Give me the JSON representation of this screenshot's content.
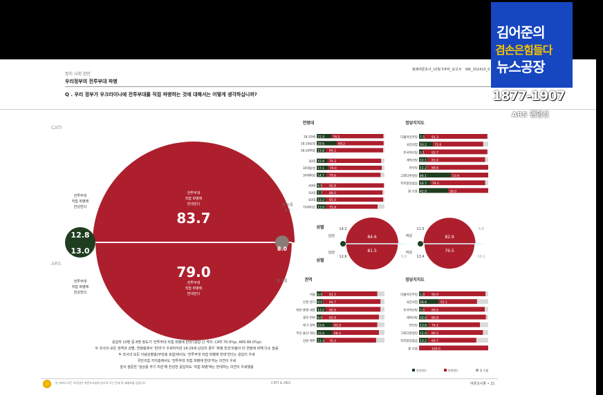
{
  "header": {
    "section": "정치 사회 현안",
    "topic": "우리정부의 전투부대 파병",
    "question": "Q . 우리 정부가 우크라이나에 전투부대를 직접 파병하는 것에 대해서는 어떻게 생각하십니까?",
    "report_ref": "정례여론조사_10월 5주차_보고서",
    "report_code": "WK_202410_0"
  },
  "logo": {
    "line1": "김어준의",
    "line2": "겸손은힘들다",
    "line3": "뉴스공장",
    "phone": "1877-1907",
    "sub": "ARS 랜덤선"
  },
  "colors": {
    "red": "#ad1f2d",
    "green": "#1f3d1f",
    "gray": "#8a7b74",
    "logo_blue": "#1646c0",
    "logo_yellow": "#f6c200"
  },
  "main": {
    "cati_label": "CATI",
    "ars_label": "ARS",
    "cati": {
      "support": 12.8,
      "oppose": 83.7,
      "dk": 3.4
    },
    "ars": {
      "support": 13.0,
      "oppose": 79.0,
      "dk": 8.0
    },
    "support_label_top": [
      "전투부대",
      "직접 파병에",
      "찬성한다"
    ],
    "support_label_bottom": [
      "전투부대",
      "직접 파병에",
      "찬성한다"
    ],
    "oppose_label_top": [
      "전투부대",
      "직접 파병에",
      "반대한다"
    ],
    "oppose_label_bottom": [
      "전투부대",
      "직접 파병에",
      "반대한다"
    ],
    "dk_label_top": [
      "잘 모름",
      "3.4"
    ],
    "dk_label_bottom": "잘 모름"
  },
  "summary": [
    "응답자 10명 중 8명 정도가 '전투부대 직접 파병에 반대'(응답 간 격차: CATI 70.9%p, ARS 66.0%p)",
    "두 조사의 모든 권역과 성별, 연령층에서 '반대'가 우세하지만 18-29세 남성의 경우 '파병 찬성'비율이 타 연령에 비해 다소 높음",
    "두 조사의 모든 이념성향층(무당층 포함)에서도 '전투부대 직접 파병에 반대'한다는 응답이 우세",
    "국민의힘 지지층에서도 '전투부대 직접 파병에 반대'하는 의견이 우세",
    "앞서 질문한 '살상용 무기 지원'에 찬성한 응답자도 '직접 파병'에는 반대하는 의견이 우세했음"
  ],
  "footer": {
    "left": "본 자료의 모든 저작권은 여론조사꽃에 있으며 무단 전재 및 재배포를 금합니다",
    "center": "CATI & ARS",
    "right": "여론조사꽃 • 21"
  },
  "chart_data": [
    {
      "type": "bar",
      "title": "연령대",
      "categories": [
        "18-29세",
        "18-29남성",
        "18-29여성",
        "30대",
        "30대남성",
        "30대여성",
        "40대",
        "50대",
        "60대",
        "70세이상"
      ],
      "series": [
        {
          "name": "찬성",
          "values": [
            21.9,
            29.6,
            13.8,
            15.9,
            17.1,
            14.7,
            6.5,
            7.7,
            13.2,
            13.9
          ]
        },
        {
          "name": "반대",
          "values": [
            76.5,
            69.2,
            84.2,
            79.3,
            79.0,
            79.6,
            92.8,
            89.5,
            85.0,
            75.9
          ]
        }
      ]
    },
    {
      "type": "bar",
      "title": "정당지지도",
      "categories": [
        "더불어민주당",
        "국민의힘",
        "조국혁신당",
        "개혁신당",
        "진보당",
        "그외다른정당",
        "지지정당없음",
        "잘 모름"
      ],
      "series": [
        {
          "name": "찬성",
          "values": [
            7.5,
            20.2,
            5.1,
            12.1,
            11.2,
            46.1,
            16.7,
            42.0
          ]
        },
        {
          "name": "반대",
          "values": [
            91.3,
            72.6,
            93.7,
            83.4,
            88.8,
            53.9,
            79.0,
            58.0
          ]
        }
      ]
    },
    {
      "type": "pie",
      "title": "성별",
      "categories": [
        "남성",
        "여성"
      ],
      "series": [
        {
          "name": "CATI",
          "values": [
            84.6,
            82.9
          ]
        },
        {
          "name": "ARS",
          "values": [
            81.5,
            76.5
          ]
        }
      ],
      "support": {
        "CATI": [
          14.2,
          11.5
        ],
        "ARS": [
          12.6,
          13.4
        ]
      },
      "dk": {
        "CATI": [
          null,
          5.6
        ],
        "ARS": [
          5.9,
          10.1
        ]
      }
    },
    {
      "type": "bar",
      "title": "권역",
      "categories": [
        "서울",
        "인천·경기",
        "대전·충청·세종",
        "광주·전라",
        "대구·경북",
        "부산·울산·경남",
        "강원·제주"
      ],
      "series": [
        {
          "name": "찬성",
          "values": [
            8.0,
            9.5,
            13.2,
            8.0,
            23.6,
            23.4,
            11.4
          ]
        },
        {
          "name": "반대",
          "values": [
            81.5,
            84.7,
            80.9,
            83.9,
            65.9,
            68.4,
            76.3
          ]
        }
      ]
    },
    {
      "type": "bar",
      "title": "정당지지도",
      "categories": [
        "더불어민주당",
        "국민의힘",
        "조국혁신당",
        "개혁신당",
        "진보당",
        "그외다른정당",
        "지지정당없음",
        "잘 모름"
      ],
      "series": [
        {
          "name": "찬성",
          "values": [
            5.4,
            28.8,
            5.5,
            10.0,
            13.8,
            11.9,
            13.2,
            0
          ]
        },
        {
          "name": "반대",
          "values": [
            90.9,
            55.1,
            89.6,
            86.8,
            74.2,
            80.5,
            69.7,
            100.0
          ]
        }
      ]
    }
  ],
  "legend": [
    "찬성한다",
    "반대한다",
    "잘 모름"
  ]
}
